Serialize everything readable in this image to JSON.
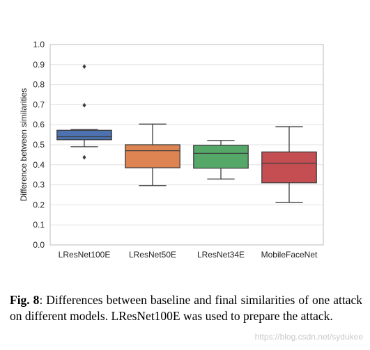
{
  "chart_data": {
    "type": "box",
    "ylabel": "Difference between similarities",
    "ylim": [
      0.0,
      1.0
    ],
    "yticks": [
      "0.0",
      "0.1",
      "0.2",
      "0.3",
      "0.4",
      "0.5",
      "0.6",
      "0.7",
      "0.8",
      "0.9",
      "1.0"
    ],
    "grid": true,
    "categories": [
      "LResNet100E",
      "LResNet50E",
      "LResNet34E",
      "MobileFaceNet"
    ],
    "boxes": [
      {
        "name": "LResNet100E",
        "color": "#4c72b0",
        "whisker_low": 0.49,
        "q1": 0.525,
        "median": 0.54,
        "q3": 0.572,
        "whisker_high": 0.576,
        "outliers": [
          0.437,
          0.697,
          0.89
        ]
      },
      {
        "name": "LResNet50E",
        "color": "#dd8452",
        "whisker_low": 0.296,
        "q1": 0.385,
        "median": 0.47,
        "q3": 0.5,
        "whisker_high": 0.603,
        "outliers": []
      },
      {
        "name": "LResNet34E",
        "color": "#55a868",
        "whisker_low": 0.329,
        "q1": 0.383,
        "median": 0.457,
        "q3": 0.497,
        "whisker_high": 0.521,
        "outliers": []
      },
      {
        "name": "MobileFaceNet",
        "color": "#c44e52",
        "whisker_low": 0.212,
        "q1": 0.31,
        "median": 0.408,
        "q3": 0.464,
        "whisker_high": 0.59,
        "outliers": []
      }
    ]
  },
  "caption": {
    "label": "Fig. 8",
    "text": ": Differences between baseline and final similarities of one attack on different models. LResNet100E was used to prepare the attack."
  },
  "watermark": "https://blog.csdn.net/sydukee"
}
